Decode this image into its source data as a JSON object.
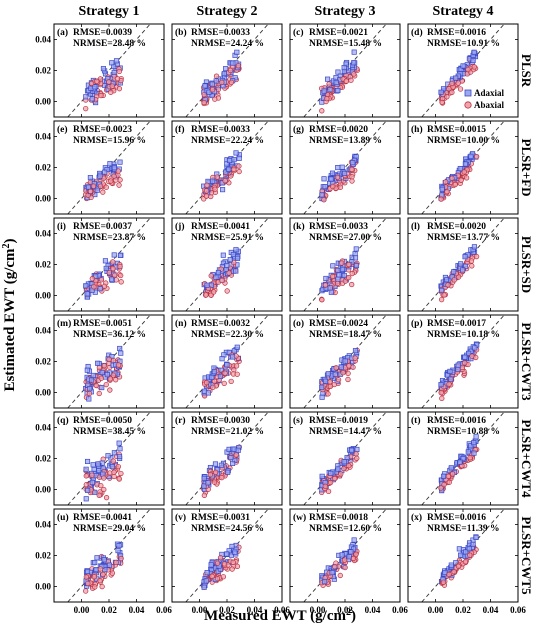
{
  "chart_data": {
    "type": "scatter",
    "xlabel": "Measured EWT (g/cm",
    "xlabel_sup": "2",
    "xlabel_end": ")",
    "ylabel": "Estimated EWT (g/cm",
    "ylabel_sup": "2",
    "ylabel_end": ")",
    "xlim": [
      -0.02,
      0.06
    ],
    "ylim": [
      -0.01,
      0.05
    ],
    "x_ticks": [
      "0.00",
      "0.02",
      "0.04",
      "0.06"
    ],
    "y_ticks": [
      "0.00",
      "0.02",
      "0.04"
    ],
    "columns": [
      "Strategy 1",
      "Strategy 2",
      "Strategy 3",
      "Strategy 4"
    ],
    "rows": [
      "PLSR",
      "PLSR+FD",
      "PLSR+SD",
      "PLSR+CWT3",
      "PLSR+CWT4",
      "PLSR+CWT5"
    ],
    "legend": [
      {
        "label": "Adaxial",
        "marker": "square",
        "color": "#4a5adf"
      },
      {
        "label": "Abaxial",
        "marker": "circle",
        "color": "#d84a5a"
      }
    ],
    "reference_line": "1:1",
    "panels": [
      {
        "label": "(a)",
        "rmse": "RMSE=0.0039",
        "nrmse": "NRMSE=28.48 %"
      },
      {
        "label": "(b)",
        "rmse": "RMSE=0.0033",
        "nrmse": "NRMSE=24.24 %"
      },
      {
        "label": "(c)",
        "rmse": "RMSE=0.0021",
        "nrmse": "NRMSE=15.48 %"
      },
      {
        "label": "(d)",
        "rmse": "RMSE=0.0016",
        "nrmse": "NRMSE=10.91 %"
      },
      {
        "label": "(e)",
        "rmse": "RMSE=0.0023",
        "nrmse": "NRMSE=15.96 %"
      },
      {
        "label": "(f)",
        "rmse": "RMSE=0.0033",
        "nrmse": "NRMSE=22.24 %"
      },
      {
        "label": "(g)",
        "rmse": "RMSE=0.0020",
        "nrmse": "NRMSE=13.89 %"
      },
      {
        "label": "(h)",
        "rmse": "RMSE=0.0015",
        "nrmse": "NRMSE=10.00 %"
      },
      {
        "label": "(i)",
        "rmse": "RMSE=0.0037",
        "nrmse": "NRMSE=23.87 %"
      },
      {
        "label": "(j)",
        "rmse": "RMSE=0.0041",
        "nrmse": "NRMSE=25.91 %"
      },
      {
        "label": "(k)",
        "rmse": "RMSE=0.0033",
        "nrmse": "NRMSE=27.00 %"
      },
      {
        "label": "(l)",
        "rmse": "RMSE=0.0020",
        "nrmse": "NRMSE=13.77 %"
      },
      {
        "label": "(m)",
        "rmse": "RMSE=0.0051",
        "nrmse": "NRMSE=36.12 %"
      },
      {
        "label": "(n)",
        "rmse": "RMSE=0.0032",
        "nrmse": "NRMSE=22.30 %"
      },
      {
        "label": "(o)",
        "rmse": "RMSE=0.0024",
        "nrmse": "NRMSE=18.47 %"
      },
      {
        "label": "(p)",
        "rmse": "RMSE=0.0017",
        "nrmse": "NRMSE=10.18 %"
      },
      {
        "label": "(q)",
        "rmse": "RMSE=0.0050",
        "nrmse": "NRMSE=38.45 %"
      },
      {
        "label": "(r)",
        "rmse": "RMSE=0.0030",
        "nrmse": "NRMSE=21.02 %"
      },
      {
        "label": "(s)",
        "rmse": "RMSE=0.0019",
        "nrmse": "NRMSE=14.47 %"
      },
      {
        "label": "(t)",
        "rmse": "RMSE=0.0016",
        "nrmse": "NRMSE=10.88 %"
      },
      {
        "label": "(u)",
        "rmse": "RMSE=0.0041",
        "nrmse": "NRMSE=29.04 %"
      },
      {
        "label": "(v)",
        "rmse": "RMSE=0.0031",
        "nrmse": "NRMSE=24.56 %"
      },
      {
        "label": "(w)",
        "rmse": "RMSE=0.0018",
        "nrmse": "NRMSE=12.60 %"
      },
      {
        "label": "(x)",
        "rmse": "RMSE=0.0016",
        "nrmse": "NRMSE=11.39 %"
      }
    ]
  }
}
